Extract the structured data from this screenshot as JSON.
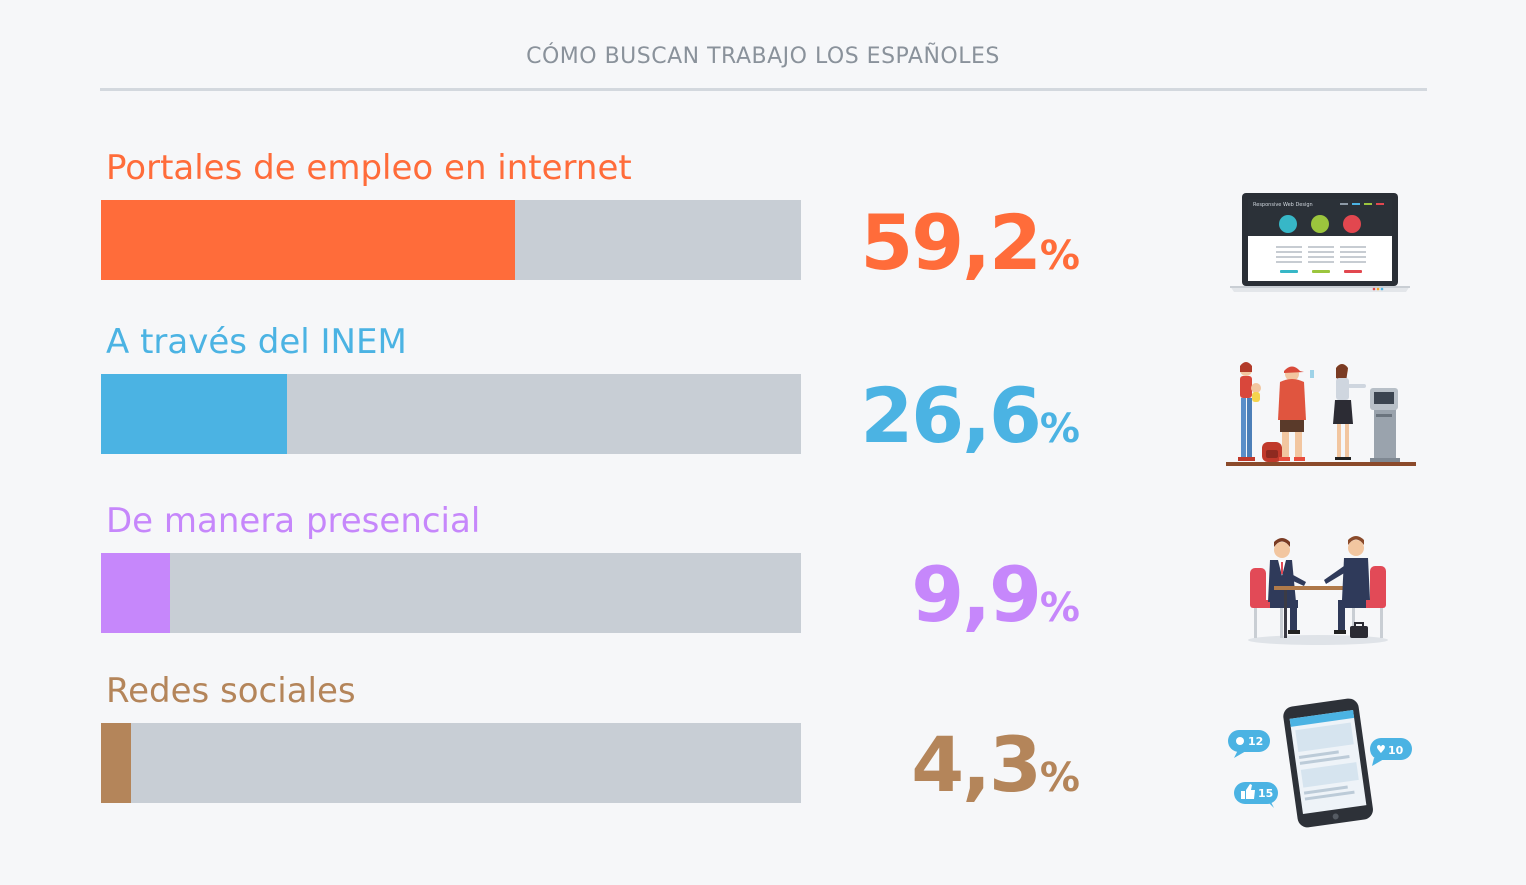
{
  "title": "CÓMO BUSCAN TRABAJO LOS ESPAÑOLES",
  "colors": {
    "background": "#f6f7f9",
    "track": "#c8ced5",
    "portales": "#ff6c3a",
    "inem": "#4bb3e3",
    "presencial": "#c687fb",
    "redes": "#b4855a"
  },
  "chart_data": {
    "type": "bar",
    "orientation": "horizontal",
    "title": "CÓMO BUSCAN TRABAJO LOS ESPAÑOLES",
    "xlim": [
      0,
      100
    ],
    "categories": [
      "Portales de empleo en internet",
      "A través del INEM",
      "De manera presencial",
      "Redes sociales"
    ],
    "values": [
      59.2,
      26.6,
      9.9,
      4.3
    ],
    "value_labels": [
      "59,2",
      "26,6",
      "9,9",
      "4,3"
    ],
    "unit": "%",
    "grid": false
  },
  "rows": [
    {
      "label": "Portales de empleo en internet",
      "value": 59.2,
      "value_text": "59,2",
      "pct": "%",
      "color": "#ff6c3a",
      "icon": "laptop-icon",
      "laptop_text": "Responsive Web Design"
    },
    {
      "label": "A través del INEM",
      "value": 26.6,
      "value_text": "26,6",
      "pct": "%",
      "color": "#4bb3e3",
      "icon": "queue-kiosk-icon"
    },
    {
      "label": "De manera presencial",
      "value": 9.9,
      "value_text": "9,9",
      "pct": "%",
      "color": "#c687fb",
      "icon": "interview-icon"
    },
    {
      "label": "Redes sociales",
      "value": 4.3,
      "value_text": "4,3",
      "pct": "%",
      "color": "#b4855a",
      "icon": "smartphone-social-icon",
      "bubbles": [
        "12",
        "10",
        "15"
      ]
    }
  ]
}
